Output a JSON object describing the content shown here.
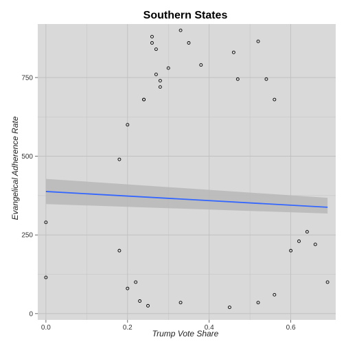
{
  "chart_data": {
    "type": "scatter",
    "title": "Southern States",
    "xlabel": "Trump Vote Share",
    "ylabel": "Evangelical Adherence Rate",
    "xlim": [
      -0.02,
      0.71
    ],
    "ylim": [
      -20,
      920
    ],
    "x_ticks": [
      {
        "value": 0.0,
        "label": "0.0"
      },
      {
        "value": 0.2,
        "label": "0.2"
      },
      {
        "value": 0.4,
        "label": "0.4"
      },
      {
        "value": 0.6,
        "label": "0.6"
      }
    ],
    "y_ticks": [
      {
        "value": 0,
        "label": "0"
      },
      {
        "value": 250,
        "label": "250"
      },
      {
        "value": 500,
        "label": "500"
      },
      {
        "value": 750,
        "label": "750"
      }
    ],
    "grid": true,
    "legend": "none",
    "colors": {
      "panel": "#d9d9d9",
      "grid": "#bdbdbd",
      "point_stroke": "#000000",
      "fit_line": "#3366ff",
      "ribbon": "#b7b7b7"
    },
    "series": [
      {
        "kind": "points",
        "points": [
          [
            0.0,
            290
          ],
          [
            0.0,
            115
          ],
          [
            0.18,
            490
          ],
          [
            0.18,
            200
          ],
          [
            0.2,
            600
          ],
          [
            0.2,
            80
          ],
          [
            0.22,
            100
          ],
          [
            0.23,
            40
          ],
          [
            0.24,
            680
          ],
          [
            0.24,
            680
          ],
          [
            0.26,
            860
          ],
          [
            0.26,
            880
          ],
          [
            0.27,
            840
          ],
          [
            0.27,
            760
          ],
          [
            0.28,
            720
          ],
          [
            0.28,
            740
          ],
          [
            0.3,
            780
          ],
          [
            0.33,
            900
          ],
          [
            0.35,
            860
          ],
          [
            0.38,
            790
          ],
          [
            0.46,
            830
          ],
          [
            0.47,
            745
          ],
          [
            0.52,
            865
          ],
          [
            0.54,
            745
          ],
          [
            0.56,
            680
          ],
          [
            0.6,
            200
          ],
          [
            0.62,
            230
          ],
          [
            0.64,
            260
          ],
          [
            0.66,
            220
          ],
          [
            0.69,
            100
          ],
          [
            0.45,
            20
          ],
          [
            0.52,
            35
          ],
          [
            0.25,
            25
          ],
          [
            0.33,
            35
          ],
          [
            0.56,
            60
          ]
        ]
      },
      {
        "kind": "linear-fit",
        "x": [
          0.0,
          0.69
        ],
        "y": [
          388,
          338
        ],
        "ci_lower": [
          348,
          318
        ],
        "ci_upper": [
          428,
          368
        ]
      }
    ]
  }
}
